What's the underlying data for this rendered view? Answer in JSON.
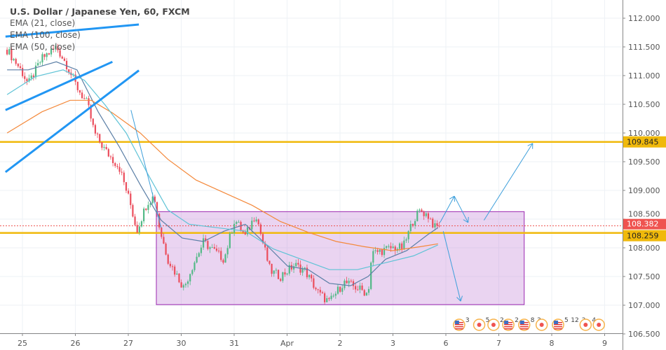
{
  "chart_data": {
    "type": "candlestick",
    "title": "U.S. Dollar / Japanese Yen, 60, FXCM",
    "indicators": [
      "EMA (21, close)",
      "EMA (100, close)",
      "EMA (50, close)"
    ],
    "x_ticks": [
      "25",
      "26",
      "27",
      "30",
      "31",
      "Apr",
      "2",
      "3",
      "6",
      "7",
      "8",
      "9"
    ],
    "y_ticks": [
      "112.000",
      "111.500",
      "111.000",
      "110.500",
      "110.000",
      "109.500",
      "109.000",
      "108.500",
      "108.000",
      "107.500",
      "107.000",
      "106.500"
    ],
    "ylim": [
      106.45,
      112.3
    ],
    "grid": true,
    "price_path": [
      [
        -0.29,
        111.45
      ],
      [
        -0.03,
        111.1
      ],
      [
        0.11,
        110.85
      ],
      [
        0.37,
        111.3
      ],
      [
        0.64,
        111.5
      ],
      [
        0.83,
        111.2
      ],
      [
        1.03,
        110.8
      ],
      [
        1.23,
        110.5
      ],
      [
        1.36,
        110.0
      ],
      [
        1.56,
        109.7
      ],
      [
        1.83,
        109.4
      ],
      [
        2.03,
        108.8
      ],
      [
        2.16,
        108.3
      ],
      [
        2.36,
        108.8
      ],
      [
        2.49,
        108.9
      ],
      [
        2.6,
        108.3
      ],
      [
        2.75,
        107.8
      ],
      [
        3.05,
        107.3
      ],
      [
        3.22,
        107.7
      ],
      [
        3.42,
        108.1
      ],
      [
        3.55,
        108.0
      ],
      [
        3.81,
        107.8
      ],
      [
        4.01,
        108.5
      ],
      [
        4.21,
        108.2
      ],
      [
        4.41,
        108.6
      ],
      [
        4.54,
        108.1
      ],
      [
        4.68,
        107.6
      ],
      [
        4.87,
        107.5
      ],
      [
        5.14,
        107.7
      ],
      [
        5.34,
        107.6
      ],
      [
        5.6,
        107.2
      ],
      [
        5.8,
        107.05
      ],
      [
        6.07,
        107.4
      ],
      [
        6.33,
        107.3
      ],
      [
        6.53,
        107.2
      ],
      [
        6.6,
        107.9
      ],
      [
        6.79,
        107.95
      ],
      [
        6.99,
        108.0
      ],
      [
        7.19,
        108.0
      ],
      [
        7.39,
        108.5
      ],
      [
        7.52,
        108.65
      ],
      [
        7.68,
        108.55
      ],
      [
        7.79,
        108.35
      ],
      [
        7.88,
        108.38
      ]
    ],
    "series": [
      {
        "name": "EMA (21, close)",
        "color": "#5b7fa6",
        "points": [
          [
            -0.29,
            111.1
          ],
          [
            0.11,
            111.1
          ],
          [
            0.64,
            111.24
          ],
          [
            1.03,
            111.1
          ],
          [
            1.43,
            110.37
          ],
          [
            1.83,
            109.76
          ],
          [
            2.23,
            109.09
          ],
          [
            2.62,
            108.48
          ],
          [
            3.02,
            108.17
          ],
          [
            3.42,
            108.11
          ],
          [
            3.81,
            108.29
          ],
          [
            4.21,
            108.41
          ],
          [
            4.61,
            108.05
          ],
          [
            5.01,
            107.68
          ],
          [
            5.4,
            107.62
          ],
          [
            5.8,
            107.38
          ],
          [
            6.2,
            107.34
          ],
          [
            6.53,
            107.5
          ],
          [
            6.86,
            107.8
          ],
          [
            7.26,
            107.95
          ],
          [
            7.66,
            108.23
          ],
          [
            7.85,
            108.35
          ]
        ]
      },
      {
        "name": "EMA (100, close)",
        "color": "#f4893b",
        "points": [
          [
            -0.29,
            110.0
          ],
          [
            0.37,
            110.37
          ],
          [
            0.9,
            110.57
          ],
          [
            1.3,
            110.57
          ],
          [
            1.7,
            110.35
          ],
          [
            2.225,
            110.0
          ],
          [
            2.75,
            109.54
          ],
          [
            3.28,
            109.18
          ],
          [
            3.81,
            108.96
          ],
          [
            4.34,
            108.74
          ],
          [
            4.87,
            108.46
          ],
          [
            5.4,
            108.27
          ],
          [
            5.93,
            108.11
          ],
          [
            6.46,
            108.02
          ],
          [
            6.99,
            107.95
          ],
          [
            7.52,
            108.02
          ],
          [
            7.85,
            108.07
          ]
        ]
      },
      {
        "name": "EMA (50, close)",
        "color": "#5fc3d6",
        "points": [
          [
            -0.29,
            110.67
          ],
          [
            0.24,
            110.98
          ],
          [
            0.77,
            111.1
          ],
          [
            1.17,
            110.92
          ],
          [
            1.56,
            110.49
          ],
          [
            1.96,
            110.0
          ],
          [
            2.36,
            109.3
          ],
          [
            2.75,
            108.66
          ],
          [
            3.15,
            108.41
          ],
          [
            3.68,
            108.35
          ],
          [
            4.21,
            108.29
          ],
          [
            4.74,
            107.98
          ],
          [
            5.27,
            107.8
          ],
          [
            5.8,
            107.62
          ],
          [
            6.33,
            107.62
          ],
          [
            6.86,
            107.74
          ],
          [
            7.39,
            107.86
          ],
          [
            7.85,
            108.05
          ]
        ]
      }
    ],
    "levels": [
      {
        "price": 109.845,
        "label": "109.845",
        "color": "#f0b90b"
      },
      {
        "price": 108.259,
        "label": "108.259",
        "color": "#f0b90b"
      }
    ],
    "last_price": {
      "price": 108.382,
      "label": "108.382",
      "color": "#ef5350"
    },
    "trendlines": [
      {
        "from": [
          -0.32,
          111.68
        ],
        "to": [
          2.2,
          111.89
        ],
        "color": "#2196f3",
        "width": 3
      },
      {
        "from": [
          -0.32,
          110.4
        ],
        "to": [
          1.7,
          111.24
        ],
        "color": "#2196f3",
        "width": 3
      },
      {
        "from": [
          -0.32,
          109.32
        ],
        "to": [
          2.2,
          111.09
        ],
        "color": "#2196f3",
        "width": 3
      },
      {
        "from": [
          2.05,
          110.4
        ],
        "to": [
          2.62,
          108.35
        ],
        "color": "#3d9fdb",
        "width": 1
      }
    ],
    "arrows": [
      {
        "points": [
          [
            7.89,
            108.44
          ],
          [
            8.16,
            108.9
          ]
        ],
        "head": true
      },
      {
        "points": [
          [
            8.16,
            108.9
          ],
          [
            8.42,
            108.44
          ]
        ],
        "head": true
      },
      {
        "points": [
          [
            8.72,
            108.48
          ],
          [
            9.64,
            109.82
          ]
        ],
        "head": true
      },
      {
        "points": [
          [
            7.95,
            108.29
          ],
          [
            8.28,
            107.07
          ]
        ],
        "head": true
      }
    ],
    "rectangle": {
      "x": [
        2.53,
        9.48
      ],
      "price": [
        107.01,
        108.63
      ],
      "fill": "rgba(190,120,210,0.32)",
      "stroke": "#9c27b0"
    },
    "colors": {
      "up": "#53b987",
      "down": "#eb4d5c",
      "grid": "#eef2f6"
    },
    "events": [
      {
        "type": "us-flag",
        "x": 8.25,
        "label": "3"
      },
      {
        "type": "dot",
        "x": 8.63,
        "label": "5"
      },
      {
        "type": "dot",
        "x": 8.9,
        "label": "2"
      },
      {
        "type": "us-flag",
        "x": 9.18,
        "label": "2"
      },
      {
        "type": "us-flag",
        "x": 9.48,
        "label": "8"
      },
      {
        "type": "label",
        "x": 9.62,
        "label": "3"
      },
      {
        "type": "dot",
        "x": 9.81,
        "label": ""
      },
      {
        "type": "us-flag",
        "x": 10.12,
        "label": "5"
      },
      {
        "type": "label",
        "x": 10.3,
        "label": "12"
      },
      {
        "type": "label",
        "x": 10.48,
        "label": "3"
      },
      {
        "type": "dot",
        "x": 10.64,
        "label": "4"
      },
      {
        "type": "dot",
        "x": 10.89,
        "label": ""
      }
    ]
  }
}
